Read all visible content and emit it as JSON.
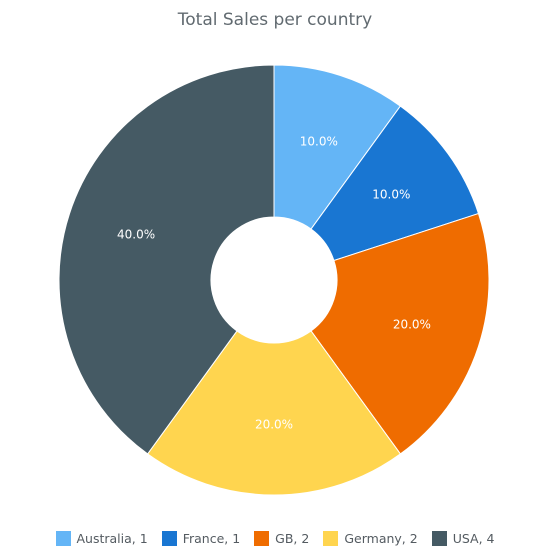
{
  "chart_data": {
    "type": "pie",
    "title": "Total Sales per country",
    "categories": [
      "Australia",
      "France",
      "GB",
      "Germany",
      "USA"
    ],
    "values": [
      1,
      1,
      2,
      2,
      4
    ],
    "percent_labels": [
      "10.0%",
      "10.0%",
      "20.0%",
      "20.0%",
      "40.0%"
    ],
    "legend_labels": [
      "Australia, 1",
      "France, 1",
      "GB, 2",
      "Germany, 2",
      "USA, 4"
    ],
    "colors": [
      "#64b5f6",
      "#1976d2",
      "#ef6c00",
      "#ffd54f",
      "#455a64"
    ],
    "legend": "bottom",
    "donut": true
  }
}
